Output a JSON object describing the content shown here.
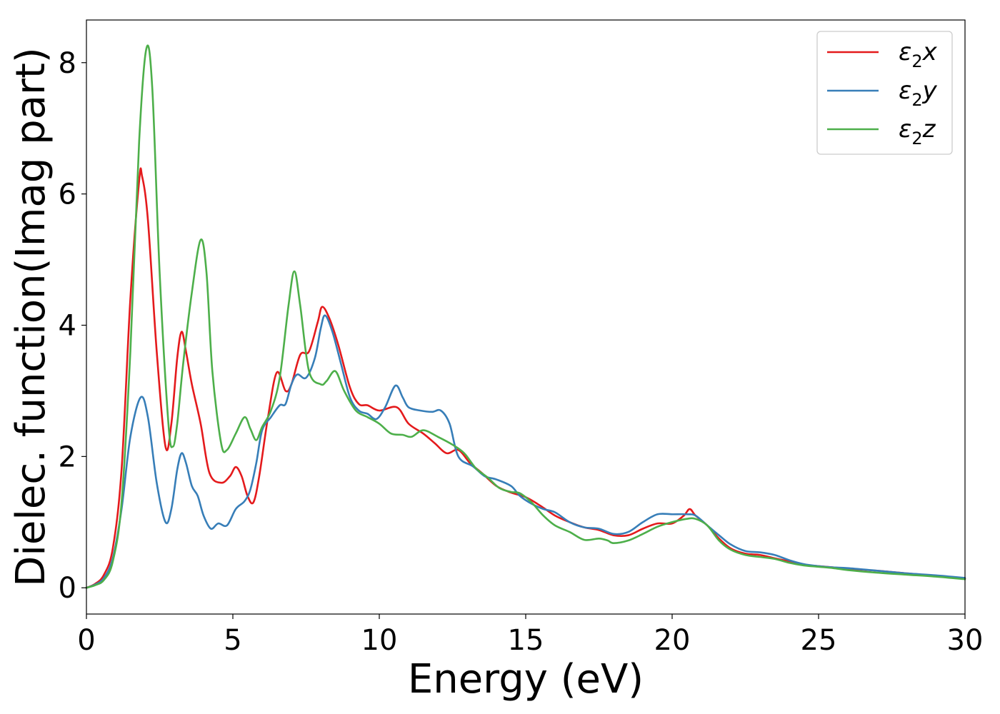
{
  "chart_data": {
    "type": "line",
    "xlabel": "Energy (eV)",
    "ylabel": "Dielec. function(Imag part)",
    "xlim": [
      0,
      30
    ],
    "ylim": [
      -0.4,
      8.65
    ],
    "xticks": [
      0,
      5,
      10,
      15,
      20,
      25,
      30
    ],
    "yticks": [
      0,
      2,
      4,
      6,
      8
    ],
    "grid": false,
    "legend_position": "top-right",
    "series": [
      {
        "name": "ε₂x",
        "legend": {
          "base": "ε",
          "sub": "2",
          "suffix": "x"
        },
        "color": "#e41a1c",
        "points": [
          [
            0,
            0
          ],
          [
            0.3,
            0.06
          ],
          [
            0.6,
            0.2
          ],
          [
            0.9,
            0.6
          ],
          [
            1.2,
            1.8
          ],
          [
            1.5,
            4.4
          ],
          [
            1.8,
            6.2
          ],
          [
            1.9,
            6.27
          ],
          [
            2.1,
            5.6
          ],
          [
            2.4,
            3.6
          ],
          [
            2.7,
            2.15
          ],
          [
            2.9,
            2.5
          ],
          [
            3.1,
            3.5
          ],
          [
            3.25,
            3.9
          ],
          [
            3.4,
            3.6
          ],
          [
            3.6,
            3.1
          ],
          [
            3.9,
            2.5
          ],
          [
            4.2,
            1.75
          ],
          [
            4.6,
            1.6
          ],
          [
            4.9,
            1.7
          ],
          [
            5.1,
            1.84
          ],
          [
            5.3,
            1.7
          ],
          [
            5.5,
            1.4
          ],
          [
            5.7,
            1.3
          ],
          [
            5.9,
            1.7
          ],
          [
            6.2,
            2.6
          ],
          [
            6.5,
            3.28
          ],
          [
            6.8,
            3.0
          ],
          [
            7.0,
            3.1
          ],
          [
            7.3,
            3.55
          ],
          [
            7.6,
            3.6
          ],
          [
            7.9,
            4.05
          ],
          [
            8.05,
            4.28
          ],
          [
            8.3,
            4.1
          ],
          [
            8.6,
            3.7
          ],
          [
            9.0,
            3.05
          ],
          [
            9.3,
            2.8
          ],
          [
            9.6,
            2.78
          ],
          [
            10.0,
            2.7
          ],
          [
            10.6,
            2.75
          ],
          [
            11.0,
            2.5
          ],
          [
            11.5,
            2.35
          ],
          [
            11.9,
            2.2
          ],
          [
            12.3,
            2.05
          ],
          [
            12.7,
            2.1
          ],
          [
            13.1,
            1.9
          ],
          [
            13.5,
            1.75
          ],
          [
            14.0,
            1.55
          ],
          [
            14.5,
            1.45
          ],
          [
            15.0,
            1.38
          ],
          [
            15.5,
            1.25
          ],
          [
            16.0,
            1.1
          ],
          [
            16.5,
            1.0
          ],
          [
            17.0,
            0.92
          ],
          [
            17.5,
            0.88
          ],
          [
            18.0,
            0.8
          ],
          [
            18.5,
            0.8
          ],
          [
            19.0,
            0.9
          ],
          [
            19.5,
            0.98
          ],
          [
            20.0,
            0.98
          ],
          [
            20.4,
            1.1
          ],
          [
            20.6,
            1.2
          ],
          [
            20.8,
            1.1
          ],
          [
            21.2,
            0.95
          ],
          [
            21.6,
            0.75
          ],
          [
            22.0,
            0.6
          ],
          [
            22.5,
            0.52
          ],
          [
            23.0,
            0.5
          ],
          [
            23.5,
            0.45
          ],
          [
            24.0,
            0.4
          ],
          [
            24.5,
            0.35
          ],
          [
            25.0,
            0.33
          ],
          [
            25.5,
            0.31
          ],
          [
            26.0,
            0.29
          ],
          [
            27.0,
            0.26
          ],
          [
            28.0,
            0.22
          ],
          [
            29.0,
            0.18
          ],
          [
            30.0,
            0.14
          ]
        ]
      },
      {
        "name": "ε₂y",
        "legend": {
          "base": "ε",
          "sub": "2",
          "suffix": "y"
        },
        "color": "#377eb8",
        "points": [
          [
            0,
            0
          ],
          [
            0.3,
            0.05
          ],
          [
            0.6,
            0.15
          ],
          [
            0.9,
            0.45
          ],
          [
            1.2,
            1.2
          ],
          [
            1.5,
            2.3
          ],
          [
            1.85,
            2.9
          ],
          [
            2.1,
            2.6
          ],
          [
            2.4,
            1.6
          ],
          [
            2.7,
            1.0
          ],
          [
            2.9,
            1.2
          ],
          [
            3.1,
            1.8
          ],
          [
            3.25,
            2.05
          ],
          [
            3.4,
            1.9
          ],
          [
            3.6,
            1.55
          ],
          [
            3.8,
            1.4
          ],
          [
            4.0,
            1.1
          ],
          [
            4.25,
            0.9
          ],
          [
            4.5,
            0.98
          ],
          [
            4.8,
            0.95
          ],
          [
            5.1,
            1.2
          ],
          [
            5.4,
            1.32
          ],
          [
            5.6,
            1.5
          ],
          [
            5.8,
            1.9
          ],
          [
            6.0,
            2.4
          ],
          [
            6.3,
            2.6
          ],
          [
            6.6,
            2.78
          ],
          [
            6.8,
            2.8
          ],
          [
            7.0,
            3.1
          ],
          [
            7.2,
            3.25
          ],
          [
            7.5,
            3.2
          ],
          [
            7.8,
            3.5
          ],
          [
            8.0,
            3.95
          ],
          [
            8.15,
            4.15
          ],
          [
            8.4,
            3.9
          ],
          [
            8.7,
            3.4
          ],
          [
            9.0,
            2.9
          ],
          [
            9.3,
            2.7
          ],
          [
            9.6,
            2.65
          ],
          [
            9.9,
            2.57
          ],
          [
            10.2,
            2.75
          ],
          [
            10.55,
            3.08
          ],
          [
            10.8,
            2.9
          ],
          [
            11.0,
            2.75
          ],
          [
            11.4,
            2.7
          ],
          [
            11.8,
            2.68
          ],
          [
            12.1,
            2.7
          ],
          [
            12.4,
            2.5
          ],
          [
            12.7,
            2.0
          ],
          [
            13.2,
            1.85
          ],
          [
            13.6,
            1.7
          ],
          [
            14.0,
            1.65
          ],
          [
            14.5,
            1.55
          ],
          [
            14.8,
            1.4
          ],
          [
            15.2,
            1.28
          ],
          [
            15.6,
            1.2
          ],
          [
            16.0,
            1.15
          ],
          [
            16.5,
            1.0
          ],
          [
            17.0,
            0.92
          ],
          [
            17.5,
            0.9
          ],
          [
            18.0,
            0.82
          ],
          [
            18.5,
            0.85
          ],
          [
            19.0,
            1.0
          ],
          [
            19.5,
            1.12
          ],
          [
            20.0,
            1.12
          ],
          [
            20.5,
            1.12
          ],
          [
            20.8,
            1.1
          ],
          [
            21.2,
            0.95
          ],
          [
            21.6,
            0.8
          ],
          [
            22.0,
            0.66
          ],
          [
            22.5,
            0.56
          ],
          [
            23.0,
            0.54
          ],
          [
            23.5,
            0.5
          ],
          [
            24.0,
            0.42
          ],
          [
            24.5,
            0.36
          ],
          [
            25.0,
            0.33
          ],
          [
            25.5,
            0.31
          ],
          [
            26.0,
            0.3
          ],
          [
            27.0,
            0.26
          ],
          [
            28.0,
            0.22
          ],
          [
            29.0,
            0.19
          ],
          [
            30.0,
            0.15
          ]
        ]
      },
      {
        "name": "ε₂z",
        "legend": {
          "base": "ε",
          "sub": "2",
          "suffix": "z"
        },
        "color": "#4daf4a",
        "points": [
          [
            0,
            0
          ],
          [
            0.3,
            0.04
          ],
          [
            0.6,
            0.12
          ],
          [
            0.9,
            0.4
          ],
          [
            1.2,
            1.3
          ],
          [
            1.5,
            3.6
          ],
          [
            1.8,
            6.8
          ],
          [
            2.05,
            8.22
          ],
          [
            2.25,
            7.6
          ],
          [
            2.5,
            4.8
          ],
          [
            2.8,
            2.5
          ],
          [
            2.95,
            2.15
          ],
          [
            3.1,
            2.5
          ],
          [
            3.3,
            3.4
          ],
          [
            3.6,
            4.5
          ],
          [
            3.9,
            5.3
          ],
          [
            4.1,
            4.8
          ],
          [
            4.3,
            3.3
          ],
          [
            4.6,
            2.2
          ],
          [
            4.8,
            2.1
          ],
          [
            5.1,
            2.35
          ],
          [
            5.4,
            2.6
          ],
          [
            5.6,
            2.42
          ],
          [
            5.8,
            2.25
          ],
          [
            6.0,
            2.45
          ],
          [
            6.3,
            2.7
          ],
          [
            6.6,
            3.2
          ],
          [
            6.9,
            4.3
          ],
          [
            7.1,
            4.82
          ],
          [
            7.3,
            4.3
          ],
          [
            7.6,
            3.3
          ],
          [
            8.0,
            3.1
          ],
          [
            8.2,
            3.15
          ],
          [
            8.5,
            3.3
          ],
          [
            8.8,
            3.0
          ],
          [
            9.2,
            2.7
          ],
          [
            9.6,
            2.6
          ],
          [
            10.0,
            2.5
          ],
          [
            10.4,
            2.35
          ],
          [
            10.8,
            2.33
          ],
          [
            11.1,
            2.3
          ],
          [
            11.5,
            2.4
          ],
          [
            12.0,
            2.3
          ],
          [
            12.5,
            2.18
          ],
          [
            12.9,
            2.05
          ],
          [
            13.3,
            1.82
          ],
          [
            13.7,
            1.68
          ],
          [
            14.1,
            1.52
          ],
          [
            14.5,
            1.46
          ],
          [
            14.8,
            1.44
          ],
          [
            15.2,
            1.3
          ],
          [
            15.6,
            1.1
          ],
          [
            16.0,
            0.95
          ],
          [
            16.5,
            0.85
          ],
          [
            17.0,
            0.73
          ],
          [
            17.5,
            0.75
          ],
          [
            17.8,
            0.72
          ],
          [
            18.0,
            0.68
          ],
          [
            18.5,
            0.72
          ],
          [
            19.0,
            0.82
          ],
          [
            19.5,
            0.93
          ],
          [
            20.0,
            1.0
          ],
          [
            20.5,
            1.05
          ],
          [
            20.8,
            1.05
          ],
          [
            21.2,
            0.95
          ],
          [
            21.6,
            0.72
          ],
          [
            22.0,
            0.58
          ],
          [
            22.5,
            0.5
          ],
          [
            23.0,
            0.47
          ],
          [
            23.5,
            0.44
          ],
          [
            24.0,
            0.38
          ],
          [
            24.5,
            0.34
          ],
          [
            25.0,
            0.32
          ],
          [
            25.5,
            0.3
          ],
          [
            26.0,
            0.27
          ],
          [
            27.0,
            0.23
          ],
          [
            28.0,
            0.2
          ],
          [
            29.0,
            0.17
          ],
          [
            30.0,
            0.13
          ]
        ]
      }
    ]
  }
}
